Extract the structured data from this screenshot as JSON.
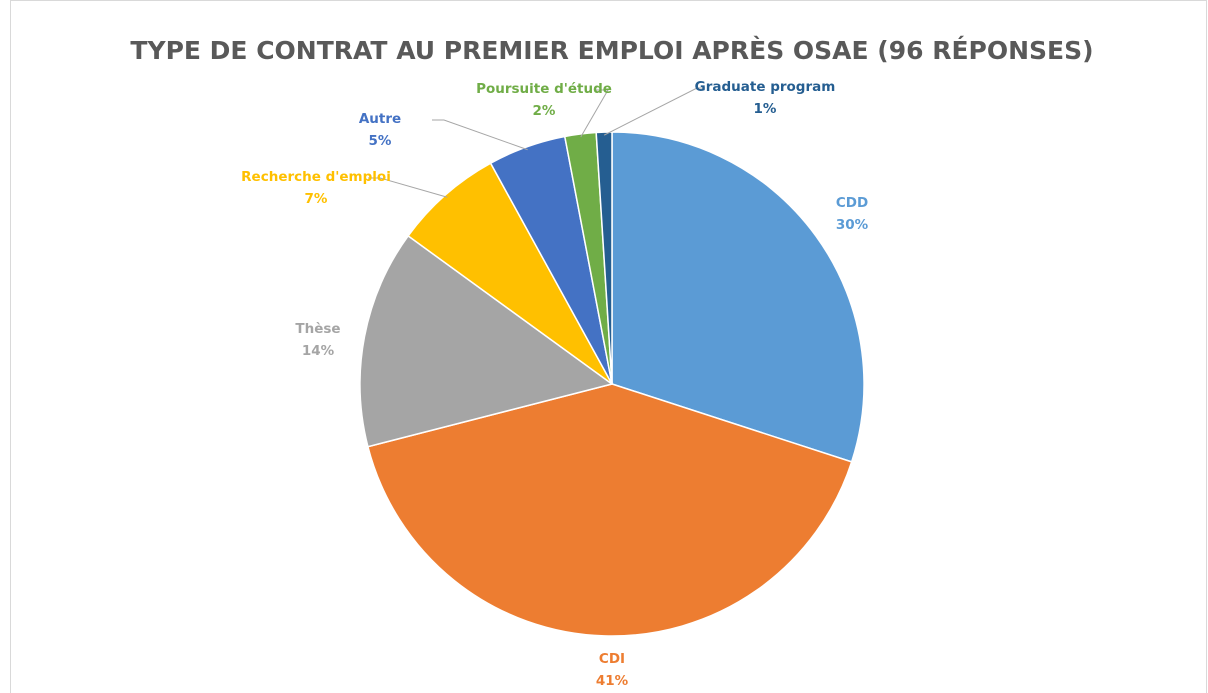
{
  "chart_data": {
    "type": "pie",
    "title": "TYPE DE CONTRAT AU PREMIER EMPLOI APRÈS OSAE (96 RÉPONSES)",
    "categories": [
      "CDD",
      "CDI",
      "Thèse",
      "Recherche d'emploi",
      "Autre",
      "Poursuite d'étude",
      "Graduate program"
    ],
    "values": [
      30,
      41,
      14,
      7,
      5,
      2,
      1
    ],
    "value_labels": [
      "30%",
      "41%",
      "14%",
      "7%",
      "5%",
      "2%",
      "1%"
    ],
    "colors": [
      "#5b9bd5",
      "#ed7d31",
      "#a5a5a5",
      "#ffc000",
      "#4472c4",
      "#70ad47",
      "#255e91"
    ]
  }
}
